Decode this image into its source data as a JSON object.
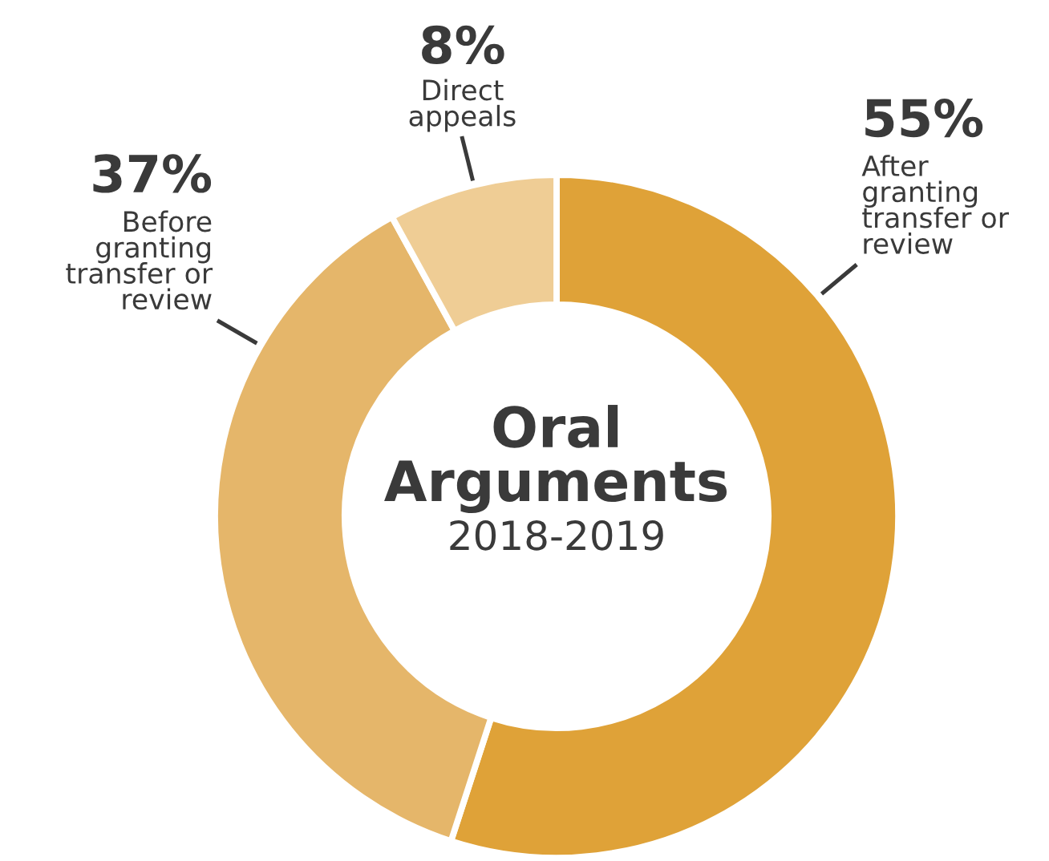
{
  "chart_data": {
    "type": "donut",
    "title": "Oral\nArguments",
    "subtitle": "2018-2019",
    "categories": [
      "After\ngranting\ntransfer or\nreview",
      "Before\ngranting\ntransfer or\nreview",
      "Direct\nappeals"
    ],
    "values": [
      55,
      37,
      8
    ],
    "value_labels": [
      "55%",
      "37%",
      "8%"
    ],
    "colors": [
      "#dfa238",
      "#e5b66a",
      "#efcd95"
    ]
  }
}
